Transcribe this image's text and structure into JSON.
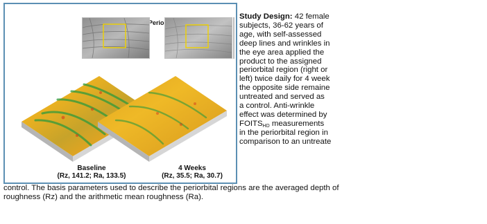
{
  "figure": {
    "region_label": "(Periorbital Region)",
    "panels": [
      {
        "title": "Baseline",
        "values": "(Rz, 141.2; Ra, 133.5)"
      },
      {
        "title": "4 Weeks",
        "values": "(Rz, 35.5; Ra, 30.7)"
      }
    ]
  },
  "study": {
    "heading": "Study Design:",
    "lines": [
      " 42 female",
      "subjects, 36-62 years of",
      "age, with self-assessed",
      "deep lines and wrinkles in",
      "the eye area applied the",
      "product to the assigned",
      "periorbital region (right or",
      "left) twice daily for 4 week",
      "the opposite side remaine",
      "untreated and served as",
      "a control. Anti-wrinkle",
      "effect was determined by"
    ],
    "foits_main": "FOITS",
    "foits_sub": "HD",
    "foits_rest": " measurements",
    "tail_lines": [
      "in the periorbital region in",
      "comparison to an untreate"
    ],
    "bottom_lines": [
      "control. The basis parameters used to describe the periorbital regions are the averaged depth of",
      "roughness (Rz) and the arithmetic mean roughness (Ra)."
    ]
  },
  "colors": {
    "panel_border": "#5b8fb3",
    "roi_box": "#f0d200",
    "surface_high": "#e8a21a",
    "surface_low": "#2f9a3c",
    "surface_base": "#c9c9c9"
  }
}
